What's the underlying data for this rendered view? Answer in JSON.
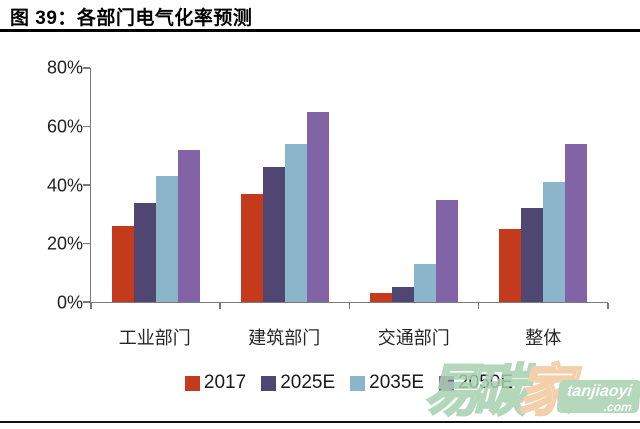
{
  "header": {
    "title": "图 39：各部门电气化率预测"
  },
  "chart_data": {
    "type": "bar",
    "title": "各部门电气化率预测",
    "categories": [
      "工业部门",
      "建筑部门",
      "交通部门",
      "整体"
    ],
    "series": [
      {
        "name": "2017",
        "color": "#C43A1C",
        "values": [
          26,
          37,
          3,
          25
        ]
      },
      {
        "name": "2025E",
        "color": "#4F4771",
        "values": [
          34,
          46,
          5,
          32
        ]
      },
      {
        "name": "2035E",
        "color": "#8BB5CA",
        "values": [
          43,
          54,
          13,
          41
        ]
      },
      {
        "name": "2050E",
        "color": "#8264A6",
        "values": [
          52,
          65,
          35,
          54
        ]
      }
    ],
    "ylabel": "",
    "xlabel": "",
    "ylim": [
      0,
      80
    ],
    "ytick_labels": [
      "0%",
      "20%",
      "40%",
      "60%",
      "80%"
    ],
    "grid": false,
    "legend_position": "bottom",
    "axis_color": "#7a7a7a"
  },
  "watermark": {
    "char1": "易",
    "char2": "碳",
    "char3": "家",
    "site": "tanjiaoyi",
    "domain": ".com",
    "green": "#a6d1ae",
    "peach": "#f3c79e"
  }
}
